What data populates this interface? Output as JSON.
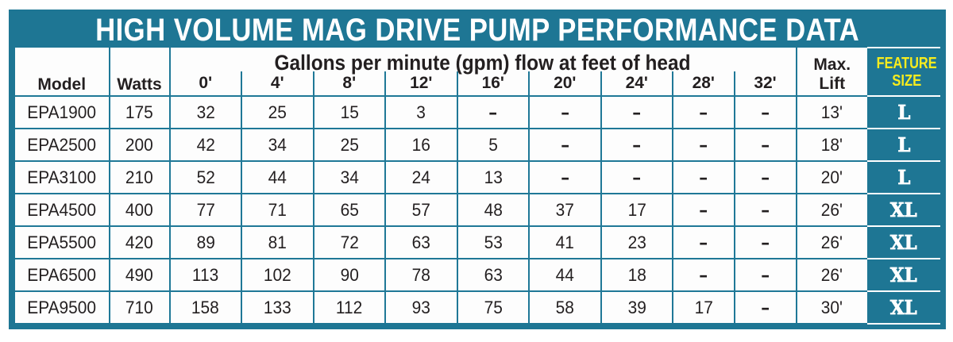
{
  "colors": {
    "teal": "#1e7694",
    "gridline": "#1f7897",
    "yellow": "#f7ec1e",
    "text_black": "#231f20",
    "white": "#ffffff"
  },
  "title": "HIGH VOLUME MAG DRIVE PUMP PERFORMANCE DATA",
  "table": {
    "span_header": "Gallons per minute (gpm) flow at feet of head",
    "col_model": "Model",
    "col_watts": "Watts",
    "head_labels": [
      "0'",
      "4'",
      "8'",
      "12'",
      "16'",
      "20'",
      "24'",
      "28'",
      "32'"
    ],
    "max_lift_line1": "Max.",
    "max_lift_line2": "Lift",
    "feature_line1": "FEATURE",
    "feature_line2": "SIZE",
    "rows": [
      {
        "model": "EPA1900",
        "watts": "175",
        "flows": [
          "32",
          "25",
          "15",
          "3",
          "-",
          "-",
          "-",
          "-",
          "-"
        ],
        "max_lift": "13'",
        "feature": "L"
      },
      {
        "model": "EPA2500",
        "watts": "200",
        "flows": [
          "42",
          "34",
          "25",
          "16",
          "5",
          "-",
          "-",
          "-",
          "-"
        ],
        "max_lift": "18'",
        "feature": "L"
      },
      {
        "model": "EPA3100",
        "watts": "210",
        "flows": [
          "52",
          "44",
          "34",
          "24",
          "13",
          "-",
          "-",
          "-",
          "-"
        ],
        "max_lift": "20'",
        "feature": "L"
      },
      {
        "model": "EPA4500",
        "watts": "400",
        "flows": [
          "77",
          "71",
          "65",
          "57",
          "48",
          "37",
          "17",
          "-",
          "-"
        ],
        "max_lift": "26'",
        "feature": "XL"
      },
      {
        "model": "EPA5500",
        "watts": "420",
        "flows": [
          "89",
          "81",
          "72",
          "63",
          "53",
          "41",
          "23",
          "-",
          "-"
        ],
        "max_lift": "26'",
        "feature": "XL"
      },
      {
        "model": "EPA6500",
        "watts": "490",
        "flows": [
          "113",
          "102",
          "90",
          "78",
          "63",
          "44",
          "18",
          "-",
          "-"
        ],
        "max_lift": "26'",
        "feature": "XL"
      },
      {
        "model": "EPA9500",
        "watts": "710",
        "flows": [
          "158",
          "133",
          "112",
          "93",
          "75",
          "58",
          "39",
          "17",
          "-"
        ],
        "max_lift": "30'",
        "feature": "XL"
      }
    ]
  },
  "chart_data": {
    "type": "table",
    "title": "HIGH VOLUME MAG DRIVE PUMP PERFORMANCE DATA",
    "column_group": {
      "label": "Gallons per minute (gpm) flow at feet of head",
      "columns": [
        "0'",
        "4'",
        "8'",
        "12'",
        "16'",
        "20'",
        "24'",
        "28'",
        "32'"
      ]
    },
    "columns": [
      "Model",
      "Watts",
      "0'",
      "4'",
      "8'",
      "12'",
      "16'",
      "20'",
      "24'",
      "28'",
      "32'",
      "Max. Lift",
      "Feature Size"
    ],
    "rows": [
      [
        "EPA1900",
        175,
        32,
        25,
        15,
        3,
        "-",
        "-",
        "-",
        "-",
        "-",
        "13'",
        "L"
      ],
      [
        "EPA2500",
        200,
        42,
        34,
        25,
        16,
        5,
        "-",
        "-",
        "-",
        "-",
        "18'",
        "L"
      ],
      [
        "EPA3100",
        210,
        52,
        44,
        34,
        24,
        13,
        "-",
        "-",
        "-",
        "-",
        "20'",
        "L"
      ],
      [
        "EPA4500",
        400,
        77,
        71,
        65,
        57,
        48,
        37,
        17,
        "-",
        "-",
        "26'",
        "XL"
      ],
      [
        "EPA5500",
        420,
        89,
        81,
        72,
        63,
        53,
        41,
        23,
        "-",
        "-",
        "26'",
        "XL"
      ],
      [
        "EPA6500",
        490,
        113,
        102,
        90,
        78,
        63,
        44,
        18,
        "-",
        "-",
        "26'",
        "XL"
      ],
      [
        "EPA9500",
        710,
        158,
        133,
        112,
        93,
        75,
        58,
        39,
        17,
        "-",
        "30'",
        "XL"
      ]
    ]
  }
}
